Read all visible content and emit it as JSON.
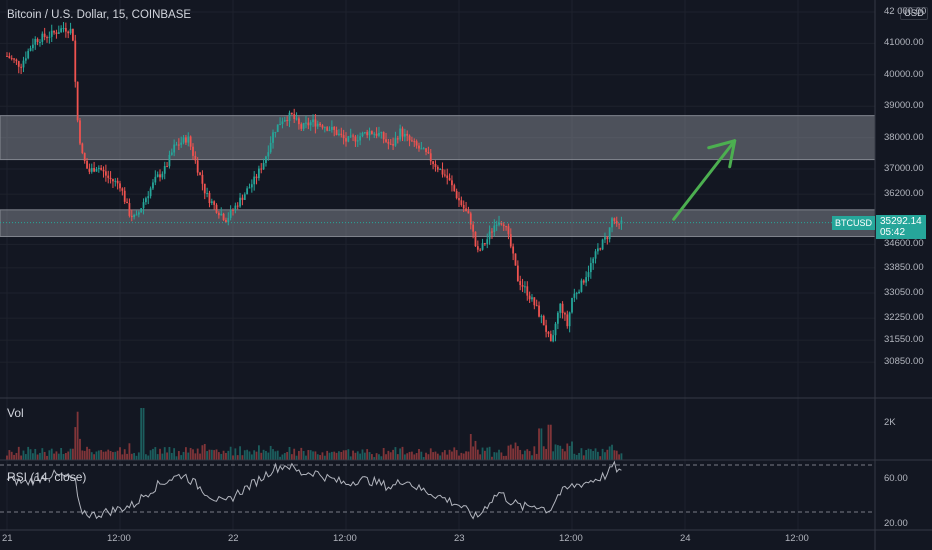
{
  "chart_header": {
    "title": "Bitcoin / U.S. Dollar, 15, COINBASE",
    "currency": "USD"
  },
  "price_axis": {
    "ticks": [
      "42 000.00",
      "41000.00",
      "40000.00",
      "39000.00",
      "38000.00",
      "37000.00",
      "36200.00",
      "34600.00",
      "33850.00",
      "33050.00",
      "32250.00",
      "31550.00",
      "30850.00"
    ],
    "values": [
      42000,
      41000,
      40000,
      39000,
      38000,
      37000,
      36200,
      34600,
      33850,
      33050,
      32250,
      31550,
      30850
    ]
  },
  "current_price": {
    "symbol": "BTCUSD",
    "price": "35292.14",
    "countdown": "05:42",
    "value": 35292.14
  },
  "time_axis": {
    "labels": [
      "21",
      "12:00",
      "22",
      "12:00",
      "23",
      "12:00",
      "24",
      "12:00"
    ],
    "positions": [
      0,
      0.5,
      1,
      1.5,
      2,
      2.5,
      3,
      3.5
    ]
  },
  "volume_pane": {
    "label": "Vol",
    "tick": "2K"
  },
  "rsi_pane": {
    "label": "RSI (14, close)",
    "ticks": [
      "60.00",
      "20.00"
    ],
    "levels": [
      70,
      30
    ]
  },
  "zones": [
    {
      "low": 37300,
      "high": 38700
    },
    {
      "low": 34850,
      "high": 35700
    }
  ],
  "annotation": {
    "type": "arrow",
    "color": "#4caf50",
    "from_day": 2.95,
    "from_price": 35400,
    "to_day": 3.22,
    "to_price": 37900
  },
  "colors": {
    "up": "#26a69a",
    "down": "#ef5350",
    "background": "#131722",
    "grid": "#1e222d",
    "zone": "#9598a1"
  },
  "chart_data": {
    "type": "candlestick",
    "title": "Bitcoin / U.S. Dollar, 15, COINBASE",
    "x_unit": "days from 21 00:00",
    "x_range": [
      0,
      3.75
    ],
    "y_range": [
      30600,
      42200
    ],
    "price_path": [
      [
        0,
        40600
      ],
      [
        0.06,
        40300
      ],
      [
        0.12,
        41100
      ],
      [
        0.2,
        41300
      ],
      [
        0.25,
        41500
      ],
      [
        0.29,
        41400
      ],
      [
        0.31,
        38700
      ],
      [
        0.33,
        37500
      ],
      [
        0.36,
        36900
      ],
      [
        0.4,
        37100
      ],
      [
        0.45,
        36700
      ],
      [
        0.5,
        36500
      ],
      [
        0.54,
        35600
      ],
      [
        0.57,
        35400
      ],
      [
        0.6,
        35900
      ],
      [
        0.66,
        36700
      ],
      [
        0.7,
        37000
      ],
      [
        0.74,
        37700
      ],
      [
        0.8,
        38000
      ],
      [
        0.84,
        37100
      ],
      [
        0.88,
        36200
      ],
      [
        0.93,
        35700
      ],
      [
        0.97,
        35400
      ],
      [
        1.02,
        35900
      ],
      [
        1.06,
        36300
      ],
      [
        1.1,
        36700
      ],
      [
        1.14,
        37300
      ],
      [
        1.18,
        38200
      ],
      [
        1.22,
        38600
      ],
      [
        1.26,
        38700
      ],
      [
        1.3,
        38300
      ],
      [
        1.35,
        38500
      ],
      [
        1.4,
        38400
      ],
      [
        1.45,
        38200
      ],
      [
        1.5,
        37900
      ],
      [
        1.55,
        38000
      ],
      [
        1.6,
        38200
      ],
      [
        1.65,
        38100
      ],
      [
        1.7,
        37700
      ],
      [
        1.74,
        38200
      ],
      [
        1.78,
        37900
      ],
      [
        1.85,
        37500
      ],
      [
        1.9,
        37100
      ],
      [
        1.95,
        36700
      ],
      [
        2.0,
        36000
      ],
      [
        2.05,
        35400
      ],
      [
        2.08,
        34300
      ],
      [
        2.12,
        34700
      ],
      [
        2.17,
        35400
      ],
      [
        2.2,
        35300
      ],
      [
        2.23,
        34500
      ],
      [
        2.26,
        33500
      ],
      [
        2.3,
        33100
      ],
      [
        2.34,
        32600
      ],
      [
        2.38,
        32000
      ],
      [
        2.41,
        31300
      ],
      [
        2.43,
        32200
      ],
      [
        2.45,
        32700
      ],
      [
        2.48,
        32000
      ],
      [
        2.5,
        32900
      ],
      [
        2.54,
        33300
      ],
      [
        2.58,
        33900
      ],
      [
        2.62,
        34500
      ],
      [
        2.66,
        34900
      ],
      [
        2.68,
        35500
      ],
      [
        2.7,
        35100
      ],
      [
        2.72,
        35292
      ]
    ],
    "volume_spikes": [
      [
        0.31,
        2600
      ],
      [
        0.6,
        2800
      ],
      [
        2.05,
        1400
      ],
      [
        2.36,
        1700
      ],
      [
        2.4,
        1900
      ]
    ],
    "rsi_path": [
      [
        0,
        58
      ],
      [
        0.08,
        55
      ],
      [
        0.2,
        62
      ],
      [
        0.3,
        58
      ],
      [
        0.32,
        32
      ],
      [
        0.38,
        27
      ],
      [
        0.44,
        30
      ],
      [
        0.5,
        33
      ],
      [
        0.56,
        36
      ],
      [
        0.6,
        43
      ],
      [
        0.66,
        52
      ],
      [
        0.72,
        58
      ],
      [
        0.78,
        62
      ],
      [
        0.84,
        53
      ],
      [
        0.9,
        44
      ],
      [
        0.96,
        37
      ],
      [
        1.02,
        46
      ],
      [
        1.08,
        53
      ],
      [
        1.14,
        61
      ],
      [
        1.18,
        67
      ],
      [
        1.24,
        70
      ],
      [
        1.3,
        63
      ],
      [
        1.36,
        64
      ],
      [
        1.42,
        59
      ],
      [
        1.5,
        54
      ],
      [
        1.56,
        58
      ],
      [
        1.62,
        56
      ],
      [
        1.7,
        51
      ],
      [
        1.76,
        58
      ],
      [
        1.82,
        50
      ],
      [
        1.88,
        46
      ],
      [
        1.94,
        41
      ],
      [
        2.0,
        36
      ],
      [
        2.04,
        30
      ],
      [
        2.08,
        25
      ],
      [
        2.14,
        40
      ],
      [
        2.18,
        47
      ],
      [
        2.22,
        40
      ],
      [
        2.28,
        34
      ],
      [
        2.34,
        36
      ],
      [
        2.4,
        31
      ],
      [
        2.44,
        45
      ],
      [
        2.5,
        52
      ],
      [
        2.56,
        55
      ],
      [
        2.62,
        59
      ],
      [
        2.66,
        62
      ],
      [
        2.68,
        70
      ],
      [
        2.72,
        63
      ]
    ]
  }
}
